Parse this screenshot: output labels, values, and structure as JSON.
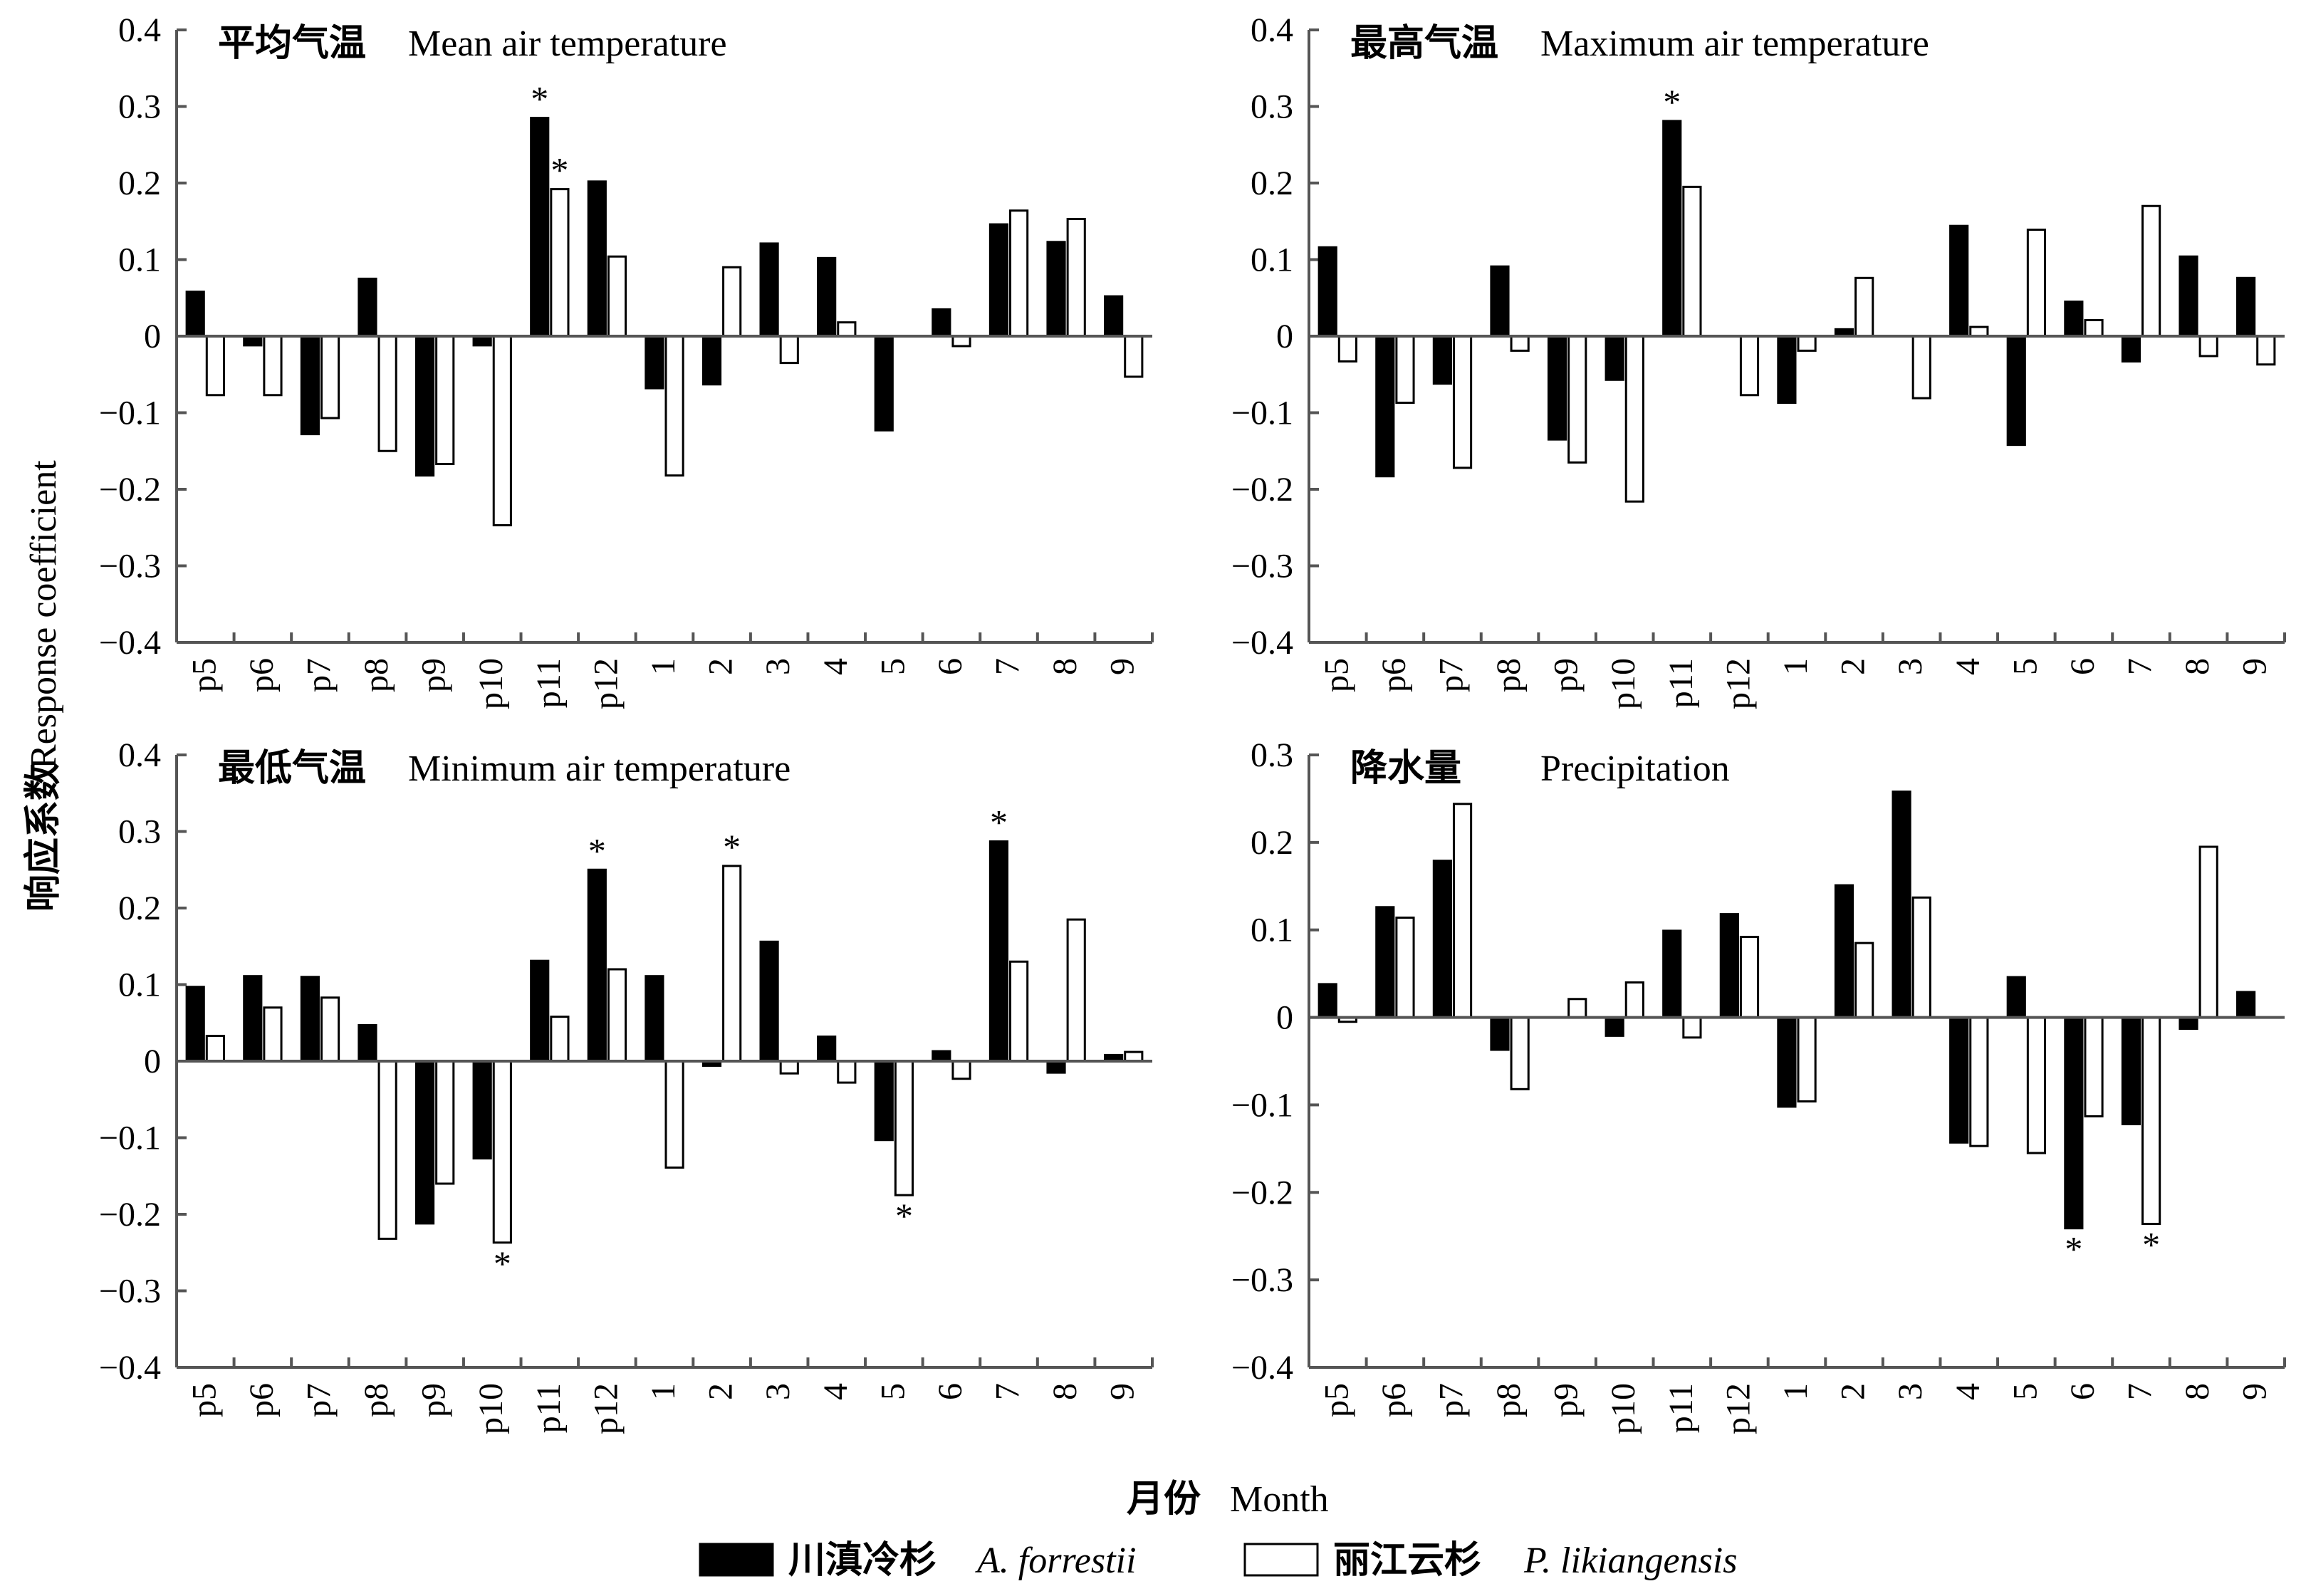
{
  "chart_data": {
    "type": "bar",
    "ylabel": "响应系数 Response coefficient",
    "xlabel": "月份 Month",
    "xlabel_cn": "月份",
    "xlabel_en": "Month",
    "ylabel_cn": "响应系数",
    "ylabel_en": "Response coefficient",
    "categories": [
      "p5",
      "p6",
      "p7",
      "p8",
      "p9",
      "p10",
      "p11",
      "p12",
      "1",
      "2",
      "3",
      "4",
      "5",
      "6",
      "7",
      "8",
      "9"
    ],
    "series_names": [
      {
        "cn": "川滇冷杉",
        "en": "A. forrestii",
        "fill": "#000000"
      },
      {
        "cn": "丽江云杉",
        "en": "P. likiangensis",
        "fill": "#ffffff"
      }
    ],
    "significance_marker": "*",
    "panels": [
      {
        "title_cn": "平均气温",
        "title_en": "Mean air temperature",
        "ylim": [
          -0.4,
          0.4
        ],
        "yticks": [
          "0.4",
          "0.3",
          "0.2",
          "0.1",
          "0",
          "−0.1",
          "−0.2",
          "−0.3",
          "−0.4"
        ],
        "series": [
          {
            "name": "川滇冷杉 A. forrestii",
            "values": [
              0.058,
              -0.012,
              -0.128,
              0.075,
              -0.182,
              -0.012,
              0.285,
              0.202,
              -0.068,
              -0.063,
              0.121,
              0.102,
              -0.123,
              0.035,
              0.146,
              0.123,
              0.052
            ],
            "significant": [
              6
            ]
          },
          {
            "name": "丽江云杉 P. likiangensis",
            "values": [
              -0.077,
              -0.077,
              -0.107,
              -0.15,
              -0.167,
              -0.247,
              0.192,
              0.104,
              -0.182,
              0.09,
              -0.035,
              0.018,
              0.0,
              -0.013,
              0.164,
              0.153,
              -0.053
            ],
            "significant": [
              6
            ]
          }
        ]
      },
      {
        "title_cn": "最高气温",
        "title_en": "Maximum air temperature",
        "ylim": [
          -0.4,
          0.4
        ],
        "yticks": [
          "0.4",
          "0.3",
          "0.2",
          "0.1",
          "0",
          "−0.1",
          "−0.2",
          "−0.3",
          "−0.4"
        ],
        "series": [
          {
            "name": "川滇冷杉 A. forrestii",
            "values": [
              0.116,
              -0.183,
              -0.062,
              0.091,
              -0.135,
              -0.057,
              0.281,
              0.0,
              -0.087,
              0.009,
              0.0,
              0.144,
              -0.142,
              0.045,
              -0.033,
              0.104,
              0.076
            ],
            "significant": [
              6
            ]
          },
          {
            "name": "丽江云杉 P. likiangensis",
            "values": [
              -0.033,
              -0.087,
              -0.172,
              -0.019,
              -0.165,
              -0.216,
              0.195,
              -0.077,
              -0.019,
              0.076,
              -0.081,
              0.012,
              0.139,
              0.021,
              0.17,
              -0.026,
              -0.037
            ],
            "significant": []
          }
        ]
      },
      {
        "title_cn": "最低气温",
        "title_en": "Minimum air temperature",
        "ylim": [
          -0.4,
          0.4
        ],
        "yticks": [
          "0.4",
          "0.3",
          "0.2",
          "0.1",
          "0",
          "−0.1",
          "−0.2",
          "−0.3",
          "−0.4"
        ],
        "series": [
          {
            "name": "川滇冷杉 A. forrestii",
            "values": [
              0.097,
              0.111,
              0.11,
              0.047,
              -0.212,
              -0.127,
              0.131,
              0.25,
              0.111,
              -0.006,
              0.156,
              0.032,
              -0.103,
              0.013,
              0.287,
              -0.015,
              0.008
            ],
            "significant": [
              7,
              14
            ]
          },
          {
            "name": "丽江云杉 P. likiangensis",
            "values": [
              0.033,
              0.07,
              0.083,
              -0.232,
              -0.16,
              -0.237,
              0.058,
              0.12,
              -0.139,
              0.255,
              -0.016,
              -0.028,
              -0.175,
              -0.023,
              0.13,
              0.185,
              0.012
            ],
            "significant": [
              5,
              9,
              12
            ]
          }
        ]
      },
      {
        "title_cn": "降水量",
        "title_en": "Precipitation",
        "ylim": [
          -0.4,
          0.3
        ],
        "yticks": [
          "0.3",
          "0.2",
          "0.1",
          "0",
          "−0.1",
          "−0.2",
          "−0.3",
          "−0.4"
        ],
        "series": [
          {
            "name": "川滇冷杉 A. forrestii",
            "values": [
              0.038,
              0.126,
              0.179,
              -0.037,
              0.0,
              -0.021,
              0.099,
              0.118,
              -0.102,
              0.151,
              0.258,
              -0.143,
              0.046,
              -0.241,
              -0.122,
              -0.013,
              0.029
            ],
            "significant": [
              13
            ]
          },
          {
            "name": "丽江云杉 P. likiangensis",
            "values": [
              -0.005,
              0.114,
              0.244,
              -0.082,
              0.021,
              0.04,
              -0.023,
              0.092,
              -0.096,
              0.085,
              0.137,
              -0.147,
              -0.155,
              -0.113,
              -0.236,
              0.195,
              0.0
            ],
            "significant": [
              14
            ]
          }
        ]
      }
    ],
    "grid": false,
    "legend_position": "bottom-center"
  },
  "colors": {
    "black_bar": "#000000",
    "white_bar": "#ffffff",
    "stroke": "#000000",
    "axis": "#555555"
  }
}
